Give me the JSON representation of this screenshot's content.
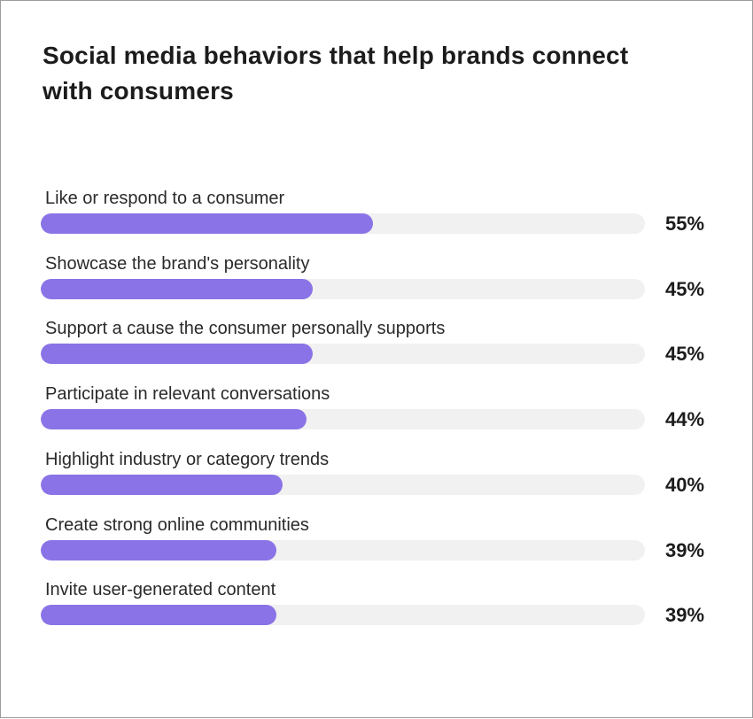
{
  "chart_data": {
    "type": "bar",
    "orientation": "horizontal",
    "title": "Social media behaviors that help brands connect with consumers",
    "categories": [
      "Like or respond to a consumer",
      "Showcase the brand's personality",
      "Support a cause the consumer personally supports",
      "Participate in relevant conversations",
      "Highlight industry or category trends",
      "Create strong online communities",
      "Invite user-generated content"
    ],
    "values": [
      55,
      45,
      45,
      44,
      40,
      39,
      39
    ],
    "value_labels": [
      "55%",
      "45%",
      "45%",
      "44%",
      "40%",
      "39%",
      "39%"
    ],
    "xlim": [
      0,
      100
    ],
    "grid": false,
    "bar_color": "#8a73e6",
    "track_color": "#f1f1f1"
  }
}
